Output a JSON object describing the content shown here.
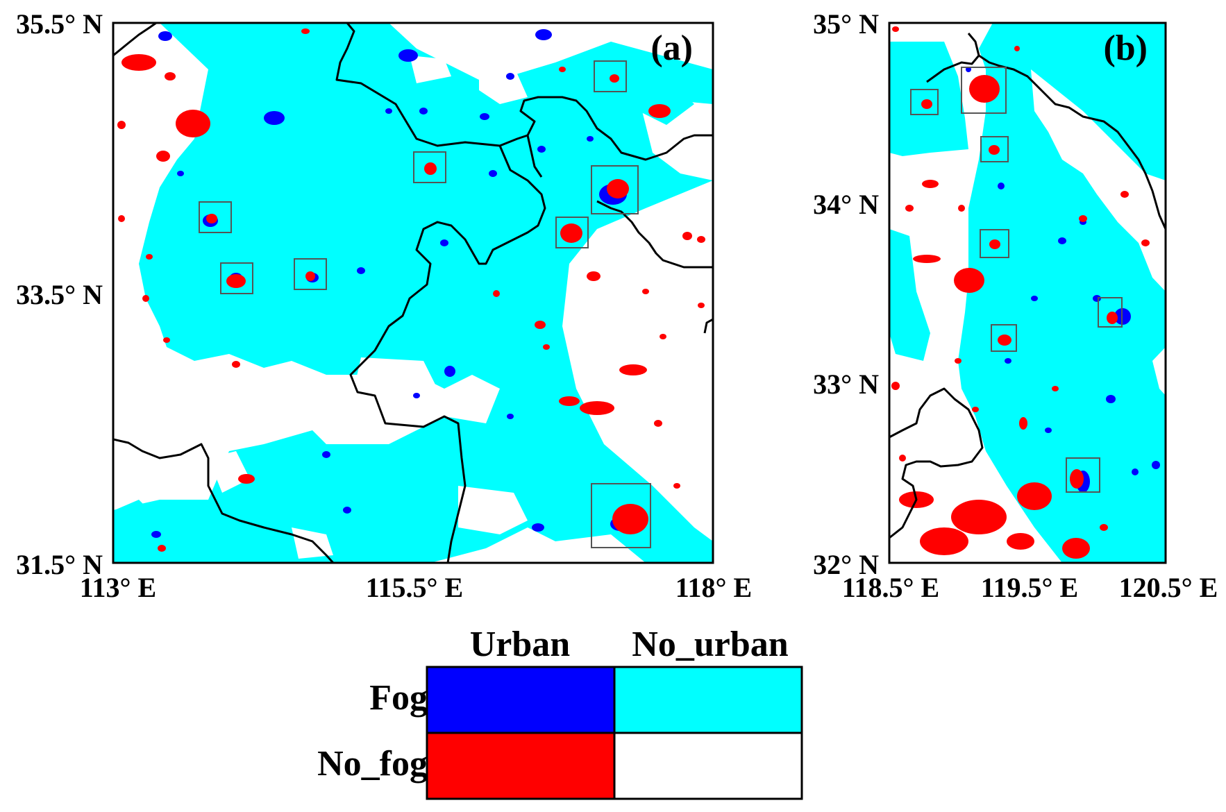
{
  "panels": [
    {
      "id": "a",
      "label": "(a)",
      "x_ticks": [
        "113° E",
        "115.5° E",
        "118° E"
      ],
      "y_ticks": [
        "35.5° N",
        "33.5° N",
        "31.5° N"
      ],
      "x_range": [
        113,
        118
      ],
      "y_range": [
        31.5,
        35.5
      ]
    },
    {
      "id": "b",
      "label": "(b)",
      "x_ticks": [
        "118.5° E",
        "119.5° E",
        "120.5° E"
      ],
      "y_ticks": [
        "35° N",
        "34° N",
        "33° N",
        "32° N"
      ],
      "x_range": [
        118.5,
        120.5
      ],
      "y_range": [
        32,
        35
      ]
    }
  ],
  "legend": {
    "col_headers": [
      "Urban",
      "No_urban"
    ],
    "row_headers": [
      "Fog",
      "No_fog"
    ],
    "cells": [
      {
        "row": "Fog",
        "col": "Urban",
        "color": "#0000ff"
      },
      {
        "row": "Fog",
        "col": "No_urban",
        "color": "#00ffff"
      },
      {
        "row": "No_fog",
        "col": "Urban",
        "color": "#ff0000"
      },
      {
        "row": "No_fog",
        "col": "No_urban",
        "color": "#ffffff"
      }
    ]
  },
  "colors": {
    "fog_urban": "#0000ff",
    "fog_no_urban": "#00ffff",
    "no_fog_urban": "#ff0000",
    "no_fog_no_urban": "#ffffff",
    "boundary": "#000000",
    "box": "#555555"
  }
}
